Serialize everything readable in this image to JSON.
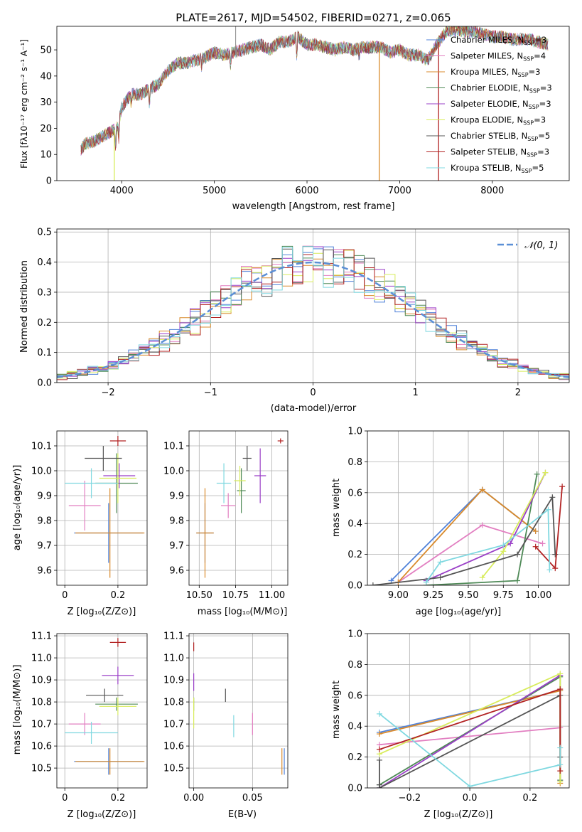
{
  "colors": {
    "chabrier_miles": "#4f81d9",
    "salpeter_miles": "#e27fc1",
    "kroupa_miles": "#d98a2b",
    "chabrier_elodie": "#4f8a57",
    "salpeter_elodie": "#9a3fc7",
    "kroupa_elodie": "#d8ec5c",
    "chabrier_stelib": "#555555",
    "salpeter_stelib": "#b22222",
    "kroupa_stelib": "#7fd8e0",
    "normal": "#5b8fd6",
    "grid": "#b0b0b0"
  },
  "chart_data": [
    {
      "id": "spectrum",
      "type": "line",
      "title": "PLATE=2617, MJD=54502, FIBERID=0271, z=0.065",
      "xlabel": "wavelength [Angstrom, rest frame]",
      "ylabel": "Flux [fλ10⁻¹⁷ erg cm⁻² s⁻¹ A⁻¹]",
      "xlim": [
        3300,
        8830
      ],
      "ylim": [
        0,
        59
      ],
      "xticks": [
        4000,
        5000,
        6000,
        7000,
        8000
      ],
      "yticks": [
        0,
        10,
        20,
        30,
        40,
        50
      ],
      "grid": false,
      "legend_position": "top-right",
      "legend": [
        "Chabrier MILES, N_SSP=3",
        "Salpeter MILES, N_SSP=4",
        "Kroupa MILES, N_SSP=3",
        "Chabrier ELODIE, N_SSP=3",
        "Salpeter ELODIE, N_SSP=3",
        "Kroupa ELODIE, N_SSP=3",
        "Chabrier STELIB, N_SSP=5",
        "Salpeter STELIB, N_SSP=3",
        "Kroupa STELIB, N_SSP=5"
      ],
      "envelope": {
        "x": [
          3550,
          3600,
          3700,
          3800,
          3900,
          3950,
          4000,
          4100,
          4200,
          4300,
          4400,
          4500,
          4600,
          4700,
          4800,
          4900,
          5000,
          5100,
          5200,
          5300,
          5400,
          5500,
          5600,
          5700,
          5800,
          5900,
          6000,
          6100,
          6200,
          6300,
          6400,
          6500,
          6600,
          6700,
          6800,
          6900,
          7000,
          7100,
          7200,
          7300,
          7400,
          7500,
          7600,
          7700,
          7800,
          7900,
          8000,
          8100,
          8200,
          8300,
          8400,
          8500,
          8600
        ],
        "y": [
          11,
          14,
          15,
          17,
          19,
          20,
          28,
          33,
          33,
          35,
          37,
          42,
          45,
          45,
          46,
          47,
          49,
          48,
          49,
          50,
          51,
          52,
          50,
          53,
          53,
          55,
          52,
          52,
          51,
          50,
          51,
          50,
          51,
          51,
          51,
          49,
          50,
          48,
          48,
          46,
          52,
          57,
          58,
          57,
          57,
          56,
          55,
          55,
          54,
          54,
          54,
          53,
          52
        ]
      },
      "drops": [
        {
          "x": 3920,
          "y": 0,
          "series": "Kroupa ELODIE"
        },
        {
          "x": 6780,
          "y": 0,
          "series": "Kroupa MILES"
        },
        {
          "x": 7420,
          "y": 0,
          "series": "Salpeter STELIB"
        }
      ],
      "spike": {
        "x": 5230,
        "y": 59
      }
    },
    {
      "id": "residuals",
      "type": "histogram",
      "xlabel": "(data-model)/error",
      "ylabel": "Normed distribution",
      "xlim": [
        -2.5,
        2.5
      ],
      "ylim": [
        0,
        0.51
      ],
      "xticks": [
        -2,
        -1,
        0,
        1,
        2
      ],
      "xtick_labels": [
        "−2",
        "−1",
        "0",
        "1",
        "2"
      ],
      "yticks": [
        0.0,
        0.1,
        0.2,
        0.3,
        0.4,
        0.5
      ],
      "grid": true,
      "legend": [
        "𝒩(0, 1)"
      ],
      "legend_position": "top-right",
      "bin_width": 0.1
    },
    {
      "id": "age_vs_Z",
      "type": "errorbar",
      "xlabel": "Z [log₁₀(Z/Z⊙)]",
      "ylabel": "age  [log₁₀(age/yr)]",
      "xlim": [
        -0.03,
        0.31
      ],
      "ylim": [
        9.54,
        10.16
      ],
      "xticks": [
        0.0,
        0.2
      ],
      "yticks": [
        9.6,
        9.7,
        9.8,
        9.9,
        10.0,
        10.1
      ],
      "grid": true,
      "points": [
        {
          "series": "Chabrier MILES",
          "x": 0.165,
          "xerr": 0.13,
          "y": 9.75,
          "yerr": 0.12
        },
        {
          "series": "Salpeter MILES",
          "x": 0.075,
          "xerr": 0.06,
          "y": 9.86,
          "yerr": 0.1
        },
        {
          "series": "Kroupa MILES",
          "x": 0.17,
          "xerr": 0.13,
          "y": 9.75,
          "yerr": 0.18
        },
        {
          "series": "Chabrier ELODIE",
          "x": 0.195,
          "xerr": 0.08,
          "y": 9.95,
          "yerr": 0.12
        },
        {
          "series": "Salpeter ELODIE",
          "x": 0.205,
          "xerr": 0.06,
          "y": 9.98,
          "yerr": 0.05
        },
        {
          "series": "Kroupa ELODIE",
          "x": 0.2,
          "xerr": 0.07,
          "y": 9.97,
          "yerr": 0.1
        },
        {
          "series": "Chabrier STELIB",
          "x": 0.145,
          "xerr": 0.07,
          "y": 10.05,
          "yerr": 0.05
        },
        {
          "series": "Salpeter STELIB",
          "x": 0.2,
          "xerr": 0.03,
          "y": 10.12,
          "yerr": 0.02
        },
        {
          "series": "Kroupa STELIB",
          "x": 0.1,
          "xerr": 0.1,
          "y": 9.95,
          "yerr": 0.06
        }
      ]
    },
    {
      "id": "age_vs_mass",
      "type": "errorbar",
      "xlabel": "mass [log₁₀(M/M⊙)]",
      "ylabel": "",
      "xlim": [
        10.43,
        11.11
      ],
      "ylim": [
        9.54,
        10.16
      ],
      "xticks": [
        10.5,
        10.75,
        11.0
      ],
      "xtick_labels": [
        "10.50",
        "10.75",
        "11.00"
      ],
      "yticks": [
        9.6,
        9.7,
        9.8,
        9.9,
        10.0,
        10.1
      ],
      "grid": true,
      "points": [
        {
          "series": "Chabrier MILES",
          "x": 10.54,
          "xerr": 0.06,
          "y": 9.75,
          "yerr": 0.12
        },
        {
          "series": "Salpeter MILES",
          "x": 10.7,
          "xerr": 0.05,
          "y": 9.86,
          "yerr": 0.05
        },
        {
          "series": "Kroupa MILES",
          "x": 10.54,
          "xerr": 0.06,
          "y": 9.75,
          "yerr": 0.18
        },
        {
          "series": "Chabrier ELODIE",
          "x": 10.79,
          "xerr": 0.03,
          "y": 9.92,
          "yerr": 0.09
        },
        {
          "series": "Salpeter ELODIE",
          "x": 10.92,
          "xerr": 0.04,
          "y": 9.98,
          "yerr": 0.11
        },
        {
          "series": "Kroupa ELODIE",
          "x": 10.78,
          "xerr": 0.04,
          "y": 9.96,
          "yerr": 0.06
        },
        {
          "series": "Chabrier STELIB",
          "x": 10.83,
          "xerr": 0.03,
          "y": 10.05,
          "yerr": 0.05
        },
        {
          "series": "Salpeter STELIB",
          "x": 11.06,
          "xerr": 0.02,
          "y": 10.12,
          "yerr": 0.01
        },
        {
          "series": "Kroupa STELIB",
          "x": 10.67,
          "xerr": 0.05,
          "y": 9.95,
          "yerr": 0.08
        }
      ]
    },
    {
      "id": "weights_vs_age",
      "type": "line",
      "xlabel": "age  [log₁₀(age/yr)]",
      "ylabel": "mass weight",
      "xlim": [
        8.78,
        10.22
      ],
      "ylim": [
        0,
        1
      ],
      "xticks": [
        9.0,
        9.25,
        9.5,
        9.75,
        10.0
      ],
      "xtick_labels": [
        "9.00",
        "9.25",
        "9.50",
        "9.75",
        "10.00"
      ],
      "yticks": [
        0.0,
        0.2,
        0.4,
        0.6,
        0.8,
        1.0
      ],
      "grid": true,
      "series": [
        {
          "name": "Chabrier MILES",
          "x": [
            8.95,
            9.6,
            9.98
          ],
          "y": [
            0.03,
            0.62,
            0.35
          ]
        },
        {
          "name": "Salpeter MILES",
          "x": [
            9.0,
            9.6,
            10.03
          ],
          "y": [
            0.02,
            0.39,
            0.27
          ]
        },
        {
          "name": "Kroupa MILES",
          "x": [
            9.0,
            9.6,
            9.98
          ],
          "y": [
            0.02,
            0.62,
            0.35
          ]
        },
        {
          "name": "Chabrier ELODIE",
          "x": [
            9.2,
            9.85,
            9.99
          ],
          "y": [
            0.0,
            0.03,
            0.72
          ]
        },
        {
          "name": "Salpeter ELODIE",
          "x": [
            9.2,
            9.8,
            10.05
          ],
          "y": [
            0.03,
            0.27,
            0.73
          ]
        },
        {
          "name": "Kroupa ELODIE",
          "x": [
            9.6,
            9.75,
            10.05
          ],
          "y": [
            0.05,
            0.22,
            0.73
          ]
        },
        {
          "name": "Chabrier STELIB",
          "x": [
            8.82,
            9.3,
            9.85,
            10.1,
            10.12
          ],
          "y": [
            0.0,
            0.05,
            0.2,
            0.57,
            0.2
          ]
        },
        {
          "name": "Salpeter STELIB",
          "x": [
            9.98,
            10.12,
            10.17
          ],
          "y": [
            0.25,
            0.11,
            0.64
          ]
        },
        {
          "name": "Kroupa STELIB",
          "x": [
            9.2,
            9.3,
            9.75,
            10.07,
            10.08
          ],
          "y": [
            0.02,
            0.15,
            0.26,
            0.49,
            0.1
          ]
        }
      ]
    },
    {
      "id": "mass_vs_Z",
      "type": "errorbar",
      "xlabel": "Z [log₁₀(Z/Z⊙)]",
      "ylabel": "mass [log₁₀(M/M⊙)]",
      "xlim": [
        -0.03,
        0.31
      ],
      "ylim": [
        10.41,
        11.11
      ],
      "xticks": [
        0.0,
        0.2
      ],
      "yticks": [
        10.5,
        10.6,
        10.7,
        10.8,
        10.9,
        11.0,
        11.1
      ],
      "grid": true,
      "points": [
        {
          "series": "Chabrier MILES",
          "x": 0.165,
          "xerr": 0.13,
          "y": 10.53,
          "yerr": 0.06
        },
        {
          "series": "Salpeter MILES",
          "x": 0.075,
          "xerr": 0.06,
          "y": 10.7,
          "yerr": 0.05
        },
        {
          "series": "Kroupa MILES",
          "x": 0.17,
          "xerr": 0.13,
          "y": 10.53,
          "yerr": 0.06
        },
        {
          "series": "Chabrier ELODIE",
          "x": 0.195,
          "xerr": 0.08,
          "y": 10.79,
          "yerr": 0.03
        },
        {
          "series": "Salpeter ELODIE",
          "x": 0.2,
          "xerr": 0.06,
          "y": 10.92,
          "yerr": 0.04
        },
        {
          "series": "Kroupa ELODIE",
          "x": 0.2,
          "xerr": 0.07,
          "y": 10.78,
          "yerr": 0.04
        },
        {
          "series": "Chabrier STELIB",
          "x": 0.15,
          "xerr": 0.07,
          "y": 10.83,
          "yerr": 0.03
        },
        {
          "series": "Salpeter STELIB",
          "x": 0.2,
          "xerr": 0.03,
          "y": 11.07,
          "yerr": 0.02
        },
        {
          "series": "Kroupa STELIB",
          "x": 0.1,
          "xerr": 0.1,
          "y": 10.66,
          "yerr": 0.05
        }
      ]
    },
    {
      "id": "mass_vs_ebv",
      "type": "errorbar",
      "xlabel": "E(B-V)",
      "ylabel": "",
      "xlim": [
        -0.004,
        0.08
      ],
      "ylim": [
        10.41,
        11.11
      ],
      "xticks": [
        0.0,
        0.05
      ],
      "xtick_labels": [
        "0.00",
        "0.05"
      ],
      "yticks": [
        10.5,
        10.6,
        10.7,
        10.8,
        10.9,
        11.0,
        11.1
      ],
      "grid": true,
      "points": [
        {
          "series": "Chabrier MILES",
          "x": 0.077,
          "y": 10.53,
          "yerr": 0.06
        },
        {
          "series": "Salpeter MILES",
          "x": 0.05,
          "y": 10.7,
          "yerr": 0.05
        },
        {
          "series": "Kroupa MILES",
          "x": 0.075,
          "y": 10.53,
          "yerr": 0.06
        },
        {
          "series": "Chabrier ELODIE",
          "x": 0.0,
          "y": 10.79,
          "yerr": 0.03
        },
        {
          "series": "Salpeter ELODIE",
          "x": 0.0,
          "y": 10.89,
          "yerr": 0.04
        },
        {
          "series": "Kroupa ELODIE",
          "x": 0.0,
          "y": 10.75,
          "yerr": 0.07
        },
        {
          "series": "Chabrier STELIB",
          "x": 0.027,
          "y": 10.83,
          "yerr": 0.03
        },
        {
          "series": "Salpeter STELIB",
          "x": 0.0,
          "y": 11.05,
          "yerr": 0.02
        },
        {
          "series": "Kroupa STELIB",
          "x": 0.034,
          "y": 10.69,
          "yerr": 0.05
        }
      ]
    },
    {
      "id": "weights_vs_Z",
      "type": "line",
      "xlabel": "Z [log₁₀(Z/Z⊙)]",
      "ylabel": "mass weight",
      "xlim": [
        -0.34,
        0.33
      ],
      "ylim": [
        0,
        1
      ],
      "xticks": [
        -0.2,
        0.0,
        0.2
      ],
      "xtick_labels": [
        "−0.2",
        "0.0",
        "0.2"
      ],
      "yticks": [
        0.0,
        0.2,
        0.4,
        0.6,
        0.8,
        1.0
      ],
      "grid": true,
      "series": [
        {
          "name": "Chabrier MILES",
          "x": [
            -0.3,
            0.3
          ],
          "y": [
            0.36,
            0.63
          ]
        },
        {
          "name": "Salpeter MILES",
          "x": [
            -0.3,
            0.3,
            0.3
          ],
          "y": [
            0.28,
            0.39,
            0.05
          ]
        },
        {
          "name": "Kroupa MILES",
          "x": [
            -0.3,
            0.3,
            0.3
          ],
          "y": [
            0.35,
            0.63,
            0.03
          ]
        },
        {
          "name": "Chabrier ELODIE",
          "x": [
            -0.3,
            0.3,
            0.3
          ],
          "y": [
            0.02,
            0.72,
            0.05
          ]
        },
        {
          "name": "Salpeter ELODIE",
          "x": [
            -0.3,
            0.3
          ],
          "y": [
            0.0,
            0.73
          ]
        },
        {
          "name": "Kroupa ELODIE",
          "x": [
            -0.3,
            0.3,
            0.3
          ],
          "y": [
            0.22,
            0.74,
            0.04
          ]
        },
        {
          "name": "Chabrier STELIB",
          "x": [
            -0.3,
            -0.3,
            -0.3,
            0.3,
            0.3
          ],
          "y": [
            0.18,
            0.02,
            0.0,
            0.6,
            0.2
          ]
        },
        {
          "name": "Salpeter STELIB",
          "x": [
            -0.3,
            0.3,
            0.3
          ],
          "y": [
            0.25,
            0.64,
            0.11
          ]
        },
        {
          "name": "Kroupa STELIB",
          "x": [
            -0.3,
            0.0,
            0.3,
            0.3
          ],
          "y": [
            0.48,
            0.01,
            0.15,
            0.26
          ]
        }
      ]
    }
  ]
}
